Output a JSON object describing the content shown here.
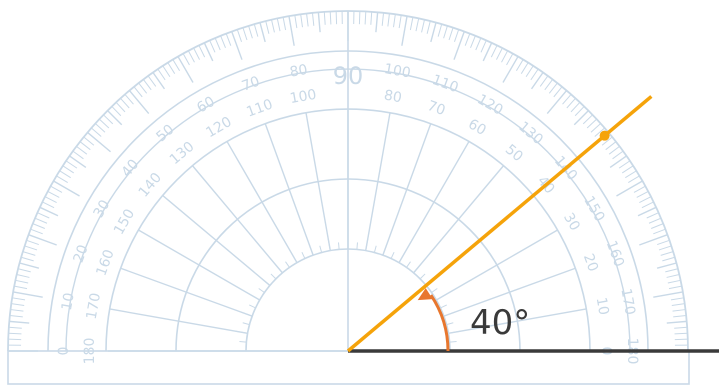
{
  "protractor": {
    "center_number": "90",
    "outer_scale": [
      "0",
      "10",
      "20",
      "30",
      "40",
      "50",
      "60",
      "70",
      "80",
      "90",
      "100",
      "110",
      "120",
      "130",
      "140",
      "150",
      "160",
      "170",
      "180"
    ],
    "inner_scale": [
      "180",
      "170",
      "160",
      "150",
      "140",
      "130",
      "120",
      "110",
      "100",
      "90",
      "80",
      "70",
      "60",
      "50",
      "40",
      "30",
      "20",
      "10",
      "0"
    ],
    "colors": {
      "ink": "#c9d9e7",
      "ink_light": "#dbe6f0",
      "baseline": "#3a3a3a",
      "ray": "#f5a30a",
      "arc": "#e8772e",
      "label": "#3a3a3a"
    }
  },
  "angle": {
    "value_deg": 40,
    "label": "40°"
  }
}
